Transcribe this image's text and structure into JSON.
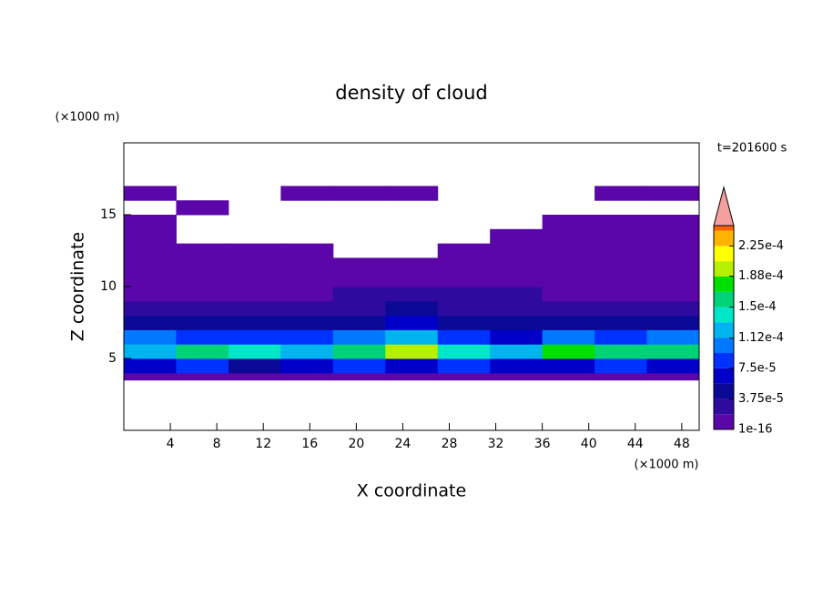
{
  "chart_data": {
    "type": "contour",
    "title": "density of cloud",
    "x_label": "X coordinate",
    "y_label": "Z coordinate",
    "x_unit": "(×1000 m)",
    "y_unit": "(×1000 m)",
    "annotation": "t=201600 s",
    "xlim": [
      0,
      49.5
    ],
    "ylim": [
      0,
      20
    ],
    "xticks": [
      4,
      8,
      12,
      16,
      20,
      24,
      28,
      32,
      36,
      40,
      44,
      48
    ],
    "yticks": [
      5,
      10,
      15
    ],
    "x_edges": [
      0,
      4.5,
      9,
      13.5,
      18,
      22.5,
      27,
      31.5,
      36,
      40.5,
      45,
      49.5
    ],
    "z_edges": [
      3.5,
      4,
      5,
      6,
      7,
      8,
      9,
      10,
      11,
      12,
      13,
      14,
      15,
      16,
      17
    ],
    "field": [
      [
        1.2e-05,
        1.2e-05,
        1.2e-05,
        1.2e-05,
        1.2e-05,
        1.2e-05,
        1.2e-05,
        1.2e-05,
        1.2e-05,
        1.2e-05,
        1.2e-05
      ],
      [
        6e-05,
        8e-05,
        5e-05,
        7e-05,
        9e-05,
        6e-05,
        8e-05,
        7e-05,
        6e-05,
        8e-05,
        7e-05
      ],
      [
        0.00013,
        0.00015,
        0.00014,
        0.00012,
        0.00016,
        0.00019,
        0.00014,
        0.00012,
        0.00018,
        0.00015,
        0.00016
      ],
      [
        0.0001,
        9e-05,
        8e-05,
        9e-05,
        0.00011,
        0.00012,
        8e-05,
        7e-05,
        0.0001,
        9e-05,
        0.00011
      ],
      [
        5e-05,
        4e-05,
        4e-05,
        4e-05,
        5e-05,
        6e-05,
        4e-05,
        4e-05,
        5e-05,
        4e-05,
        5e-05
      ],
      [
        3e-05,
        2.5e-05,
        2e-05,
        2.5e-05,
        3e-05,
        4e-05,
        3e-05,
        2.5e-05,
        2.5e-05,
        2e-05,
        3e-05
      ],
      [
        1.5e-05,
        1.5e-05,
        1e-05,
        1.5e-05,
        2e-05,
        3e-05,
        2.5e-05,
        2e-05,
        1.5e-05,
        1e-05,
        1.5e-05
      ],
      [
        1e-05,
        1e-05,
        1e-05,
        1e-05,
        1e-05,
        1.5e-05,
        1.5e-05,
        1e-05,
        1e-05,
        1e-05,
        1e-05
      ],
      [
        1e-05,
        1e-05,
        1e-05,
        1e-05,
        1e-05,
        1e-05,
        1e-05,
        1e-05,
        1e-05,
        1e-05,
        1e-05
      ],
      [
        1e-05,
        1e-05,
        1e-05,
        1e-05,
        null,
        null,
        1e-05,
        1e-05,
        1e-05,
        1e-05,
        1e-05
      ],
      [
        1e-05,
        null,
        null,
        null,
        null,
        null,
        null,
        1e-05,
        1e-05,
        1e-05,
        1e-05
      ],
      [
        1e-05,
        null,
        null,
        null,
        null,
        null,
        null,
        null,
        1e-05,
        1e-05,
        1e-05
      ],
      [
        null,
        1e-05,
        null,
        null,
        null,
        null,
        null,
        null,
        null,
        null,
        null
      ],
      [
        1e-05,
        null,
        null,
        1e-05,
        1e-05,
        1e-05,
        null,
        null,
        null,
        1e-05,
        1e-05
      ]
    ],
    "colorbar": {
      "clim": [
        1e-16,
        0.00025
      ],
      "levels": [
        1e-16,
        1.875e-05,
        3.75e-05,
        5.625e-05,
        7.5e-05,
        9.375e-05,
        0.0001125,
        0.00013125,
        0.00015,
        0.00016875,
        0.0001875,
        0.00020625,
        0.000225,
        0.00024375
      ],
      "colors": [
        "#5a06a8",
        "#2e0a9e",
        "#0a0a96",
        "#0000c8",
        "#0032ff",
        "#0078ff",
        "#00b4f0",
        "#00e6c8",
        "#00d278",
        "#00e000",
        "#b4f000",
        "#ffff00",
        "#ffb400",
        "#ff6400"
      ],
      "extend_color": "#f4a0a0",
      "ticks": [
        1e-16,
        {
          "value": 3.75e-05,
          "label": "3.75e-5"
        },
        {
          "value": 7.5e-05,
          "label": "7.5e-5"
        },
        {
          "value": 0.000112,
          "label": "1.12e-4"
        },
        {
          "value": 0.00015,
          "label": "1.5e-4"
        },
        {
          "value": 0.000188,
          "label": "1.88e-4"
        },
        {
          "value": 0.000225,
          "label": "2.25e-4"
        }
      ]
    }
  }
}
